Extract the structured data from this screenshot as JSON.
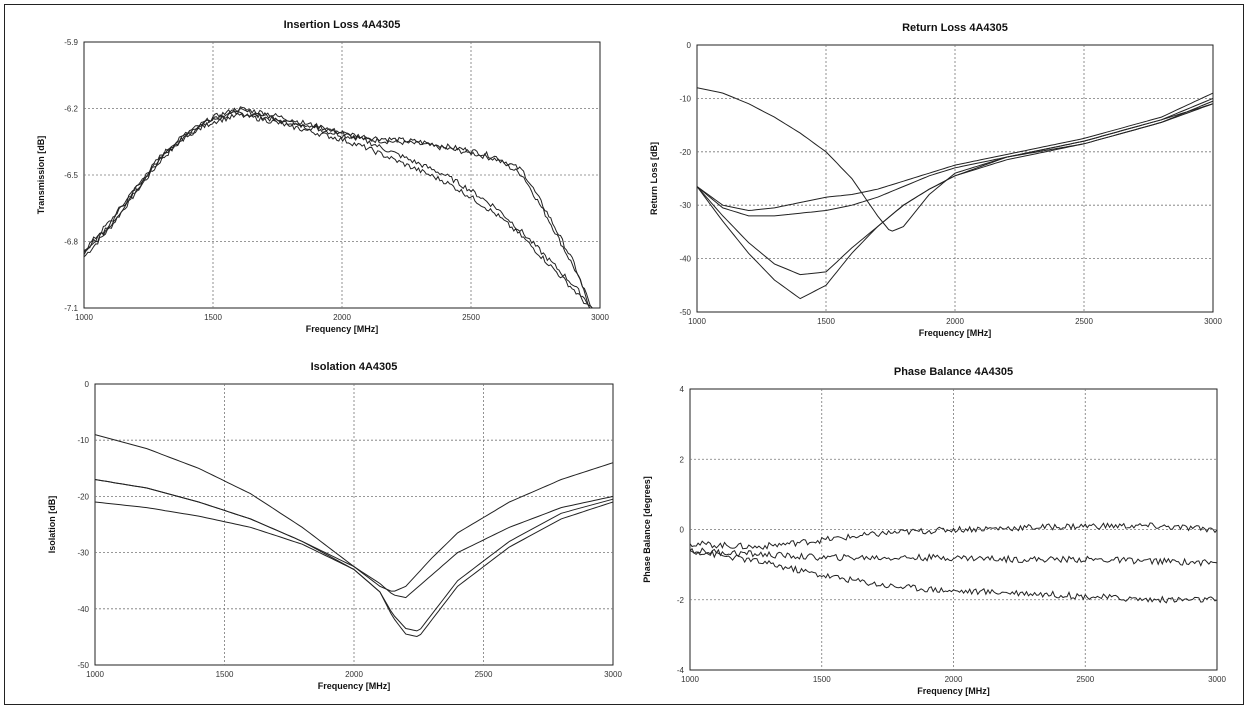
{
  "chart_data": [
    {
      "type": "line",
      "title": "Insertion Loss 4A4305",
      "xlabel": "Frequency [MHz]",
      "ylabel": "Transmission [dB]",
      "xlim": [
        1000,
        3000
      ],
      "ylim": [
        -7.1,
        -5.9
      ],
      "xticks": [
        1000,
        1500,
        2000,
        2500,
        3000
      ],
      "xtick_labels": [
        "1000",
        "1500",
        "2000",
        "2500",
        "3000"
      ],
      "yticks": [
        -5.9,
        -6.2,
        -6.5,
        -6.8,
        -7.1
      ],
      "ytick_labels": [
        "-5.9",
        "-6.2",
        "-6.5",
        "-6.8",
        "-7.1"
      ],
      "grid": true,
      "noise": 0.012,
      "series": [
        {
          "x": [
            1000,
            1100,
            1200,
            1300,
            1400,
            1500,
            1600,
            1700,
            1800,
            1900,
            2000,
            2100,
            2200,
            2300,
            2400,
            2500,
            2600,
            2700,
            2800,
            2900,
            2970
          ],
          "values": [
            -6.87,
            -6.74,
            -6.58,
            -6.43,
            -6.32,
            -6.25,
            -6.22,
            -6.24,
            -6.27,
            -6.29,
            -6.32,
            -6.34,
            -6.35,
            -6.36,
            -6.38,
            -6.4,
            -6.43,
            -6.5,
            -6.7,
            -6.92,
            -7.1
          ]
        },
        {
          "x": [
            1000,
            1100,
            1200,
            1300,
            1400,
            1500,
            1600,
            1700,
            1800,
            1900,
            2000,
            2100,
            2200,
            2300,
            2400,
            2500,
            2600,
            2700,
            2800,
            2900,
            2960
          ],
          "values": [
            -6.84,
            -6.71,
            -6.56,
            -6.41,
            -6.31,
            -6.24,
            -6.21,
            -6.23,
            -6.26,
            -6.28,
            -6.31,
            -6.33,
            -6.34,
            -6.35,
            -6.37,
            -6.39,
            -6.42,
            -6.48,
            -6.68,
            -6.9,
            -7.1
          ]
        },
        {
          "x": [
            1000,
            1100,
            1200,
            1300,
            1400,
            1500,
            1600,
            1700,
            1800,
            1900,
            2000,
            2100,
            2200,
            2300,
            2400,
            2500,
            2600,
            2700,
            2800,
            2900,
            2970
          ],
          "values": [
            -6.86,
            -6.73,
            -6.57,
            -6.42,
            -6.31,
            -6.24,
            -6.2,
            -6.22,
            -6.25,
            -6.28,
            -6.31,
            -6.35,
            -6.4,
            -6.45,
            -6.5,
            -6.57,
            -6.65,
            -6.76,
            -6.88,
            -7.0,
            -7.1
          ]
        },
        {
          "x": [
            1000,
            1100,
            1200,
            1300,
            1400,
            1500,
            1600,
            1700,
            1800,
            1900,
            2000,
            2100,
            2200,
            2300,
            2400,
            2500,
            2600,
            2700,
            2800,
            2900,
            2960
          ],
          "values": [
            -6.85,
            -6.72,
            -6.56,
            -6.42,
            -6.32,
            -6.26,
            -6.23,
            -6.25,
            -6.28,
            -6.31,
            -6.34,
            -6.38,
            -6.43,
            -6.48,
            -6.53,
            -6.6,
            -6.68,
            -6.78,
            -6.9,
            -7.02,
            -7.1
          ]
        }
      ]
    },
    {
      "type": "line",
      "title": "Return Loss 4A4305",
      "xlabel": "Frequency [MHz]",
      "ylabel": "Return Loss [dB]",
      "xlim": [
        1000,
        3000
      ],
      "ylim": [
        -50,
        0
      ],
      "xticks": [
        1000,
        1500,
        2000,
        2500,
        3000
      ],
      "xtick_labels": [
        "1000",
        "1500",
        "2000",
        "2500",
        "3000"
      ],
      "yticks": [
        0,
        -10,
        -20,
        -30,
        -40,
        -50
      ],
      "ytick_labels": [
        "0",
        "-10",
        "-20",
        "-30",
        "-40",
        "-50"
      ],
      "grid": true,
      "noise": 0,
      "series": [
        {
          "x": [
            1000,
            1100,
            1200,
            1300,
            1400,
            1500,
            1600,
            1700,
            1750,
            1800,
            1900,
            2000,
            2200,
            2500,
            2800,
            3000
          ],
          "values": [
            -8,
            -9,
            -11,
            -13.5,
            -16.5,
            -20,
            -25,
            -32,
            -35,
            -34,
            -28,
            -24,
            -21,
            -18,
            -14,
            -10
          ]
        },
        {
          "x": [
            1000,
            1100,
            1200,
            1300,
            1400,
            1500,
            1600,
            1700,
            1800,
            1900,
            2000,
            2200,
            2500,
            2800,
            3000
          ],
          "values": [
            -26.5,
            -32,
            -37,
            -41,
            -43,
            -42.5,
            -38,
            -34,
            -30,
            -27,
            -24.5,
            -21,
            -18,
            -14,
            -11
          ]
        },
        {
          "x": [
            1000,
            1100,
            1200,
            1300,
            1400,
            1500,
            1600,
            1700,
            1800,
            1900,
            2000,
            2200,
            2500,
            2800,
            3000
          ],
          "values": [
            -26.5,
            -33,
            -39,
            -44,
            -47.5,
            -45,
            -39,
            -34,
            -30,
            -27,
            -24.5,
            -21.5,
            -18.5,
            -14.5,
            -11
          ]
        },
        {
          "x": [
            1000,
            1100,
            1200,
            1300,
            1400,
            1500,
            1600,
            1700,
            1800,
            1900,
            2000,
            2200,
            2500,
            2800,
            3000
          ],
          "values": [
            -26.5,
            -30,
            -31,
            -30.5,
            -29.5,
            -28.5,
            -28,
            -27,
            -25.5,
            -24,
            -22.5,
            -20.5,
            -17.5,
            -13.5,
            -9
          ]
        },
        {
          "x": [
            1000,
            1100,
            1200,
            1300,
            1400,
            1500,
            1600,
            1700,
            1800,
            1900,
            2000,
            2200,
            2500,
            2800,
            3000
          ],
          "values": [
            -26.5,
            -30.5,
            -32,
            -32,
            -31.5,
            -31,
            -30,
            -28.5,
            -26.5,
            -24.5,
            -23,
            -21,
            -18.5,
            -14.5,
            -10.5
          ]
        }
      ]
    },
    {
      "type": "line",
      "title": "Isolation 4A4305",
      "xlabel": "Frequency [MHz]",
      "ylabel": "Isolation [dB]",
      "xlim": [
        1000,
        3000
      ],
      "ylim": [
        -50,
        0
      ],
      "xticks": [
        1000,
        1500,
        2000,
        2500,
        3000
      ],
      "xtick_labels": [
        "1000",
        "1500",
        "2000",
        "2500",
        "3000"
      ],
      "yticks": [
        0,
        -10,
        -20,
        -30,
        -40,
        -50
      ],
      "ytick_labels": [
        "0",
        "-10",
        "-20",
        "-30",
        "-40",
        "-50"
      ],
      "grid": true,
      "noise": 0,
      "series": [
        {
          "x": [
            1000,
            1200,
            1400,
            1600,
            1800,
            2000,
            2100,
            2150,
            2200,
            2300,
            2400,
            2600,
            2800,
            3000
          ],
          "values": [
            -9,
            -11.5,
            -15,
            -19.5,
            -25.5,
            -32.5,
            -36,
            -37,
            -36,
            -31,
            -26.5,
            -21,
            -17,
            -14
          ]
        },
        {
          "x": [
            1000,
            1200,
            1400,
            1600,
            1800,
            2000,
            2100,
            2150,
            2200,
            2300,
            2400,
            2600,
            2800,
            3000
          ],
          "values": [
            -17,
            -18.5,
            -21,
            -24,
            -28,
            -32.5,
            -35.5,
            -37.5,
            -38,
            -34,
            -30,
            -25.5,
            -22,
            -20
          ]
        },
        {
          "x": [
            1000,
            1200,
            1400,
            1600,
            1800,
            2000,
            2100,
            2150,
            2200,
            2250,
            2300,
            2400,
            2600,
            2800,
            3000
          ],
          "values": [
            -17,
            -18.5,
            -21,
            -24,
            -28,
            -33,
            -37,
            -41,
            -43.5,
            -44,
            -41,
            -35,
            -28,
            -23,
            -20.5
          ]
        },
        {
          "x": [
            1000,
            1200,
            1400,
            1600,
            1800,
            2000,
            2100,
            2150,
            2200,
            2250,
            2300,
            2400,
            2600,
            2800,
            3000
          ],
          "values": [
            -21,
            -22,
            -23.5,
            -25.5,
            -28.5,
            -33,
            -37,
            -41.5,
            -44.5,
            -45,
            -42,
            -36,
            -29,
            -24,
            -21
          ]
        }
      ]
    },
    {
      "type": "line",
      "title": "Phase Balance 4A4305",
      "xlabel": "Frequency [MHz]",
      "ylabel": "Phase Balance [degrees]",
      "xlim": [
        1000,
        3000
      ],
      "ylim": [
        -4,
        4
      ],
      "xticks": [
        1000,
        1500,
        2000,
        2500,
        3000
      ],
      "xtick_labels": [
        "1000",
        "1500",
        "2000",
        "2500",
        "3000"
      ],
      "yticks": [
        4,
        2,
        0,
        -2,
        -4
      ],
      "ytick_labels": [
        "4",
        "2",
        "0",
        "-2",
        "-4"
      ],
      "grid": true,
      "noise": 0.09,
      "series": [
        {
          "x": [
            1000,
            1250,
            1500,
            1750,
            2000,
            2250,
            2500,
            2750,
            3000
          ],
          "values": [
            -0.4,
            -0.5,
            -0.3,
            -0.1,
            0.0,
            0.05,
            0.1,
            0.1,
            0.0
          ]
        },
        {
          "x": [
            1000,
            1250,
            1500,
            1750,
            2000,
            2250,
            2500,
            2750,
            3000
          ],
          "values": [
            -0.6,
            -0.7,
            -0.8,
            -0.8,
            -0.8,
            -0.85,
            -0.85,
            -0.9,
            -0.95
          ]
        },
        {
          "x": [
            1000,
            1250,
            1500,
            1750,
            2000,
            2250,
            2500,
            2750,
            3000
          ],
          "values": [
            -0.6,
            -0.9,
            -1.3,
            -1.6,
            -1.75,
            -1.8,
            -1.9,
            -2.0,
            -2.0
          ]
        }
      ]
    }
  ]
}
